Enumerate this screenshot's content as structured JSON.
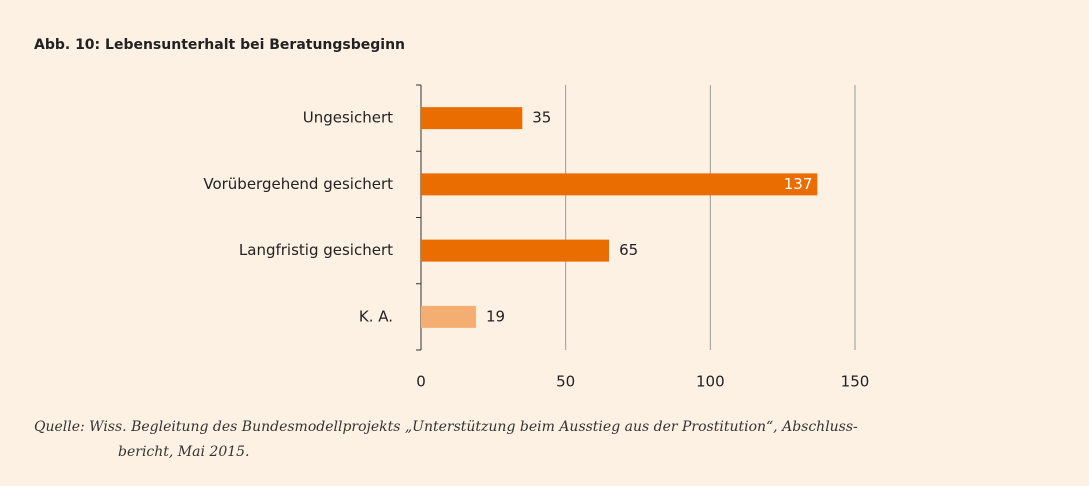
{
  "chart_data": {
    "type": "bar",
    "orientation": "horizontal",
    "title": "Abb. 10: Lebensunterhalt bei Beratungsbeginn",
    "categories": [
      "Ungesichert",
      "Vorübergehend gesichert",
      "Langfristig gesichert",
      "K. A."
    ],
    "values": [
      35,
      137,
      65,
      19
    ],
    "colors": [
      "#e96d00",
      "#e96d00",
      "#e96d00",
      "#f4ae72"
    ],
    "xlim": [
      0,
      150
    ],
    "xticks": [
      0,
      50,
      100,
      150
    ],
    "grid": true,
    "source": [
      "Quelle: Wiss. Begleitung des Bundesmodellprojekts „Unterstützung beim Ausstieg aus der Prostitution“, Abschluss-",
      "bericht, Mai 2015."
    ]
  }
}
